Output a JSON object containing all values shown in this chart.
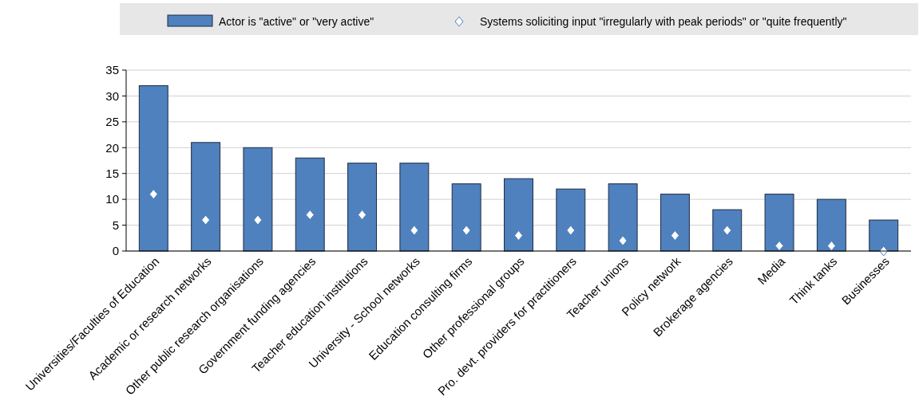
{
  "chart_data": {
    "type": "bar",
    "categories": [
      "Universities/Faculties of Education",
      "Academic or research networks",
      "Other public research organisations",
      "Government funding agencies",
      "Teacher education institutions",
      "University - School networks",
      "Education consulting firms",
      "Other professional groups",
      "Pro. devt. providers for practitioners",
      "Teacher unions",
      "Policy network",
      "Brokerage agencies",
      "Media",
      "Think tanks",
      "Businesses"
    ],
    "series": [
      {
        "name": "Actor is \"active\" or \"very active\"",
        "color": "#4e81bd",
        "values": [
          32,
          21,
          20,
          18,
          17,
          17,
          13,
          14,
          12,
          13,
          11,
          8,
          11,
          10,
          6
        ]
      },
      {
        "name": "Systems soliciting input \"irregularly with peak periods\" or \"quite frequently\"",
        "color": "#ffffff",
        "type": "scatter",
        "marker": "diamond",
        "values": [
          11,
          6,
          6,
          7,
          7,
          4,
          4,
          3,
          4,
          2,
          3,
          4,
          1,
          1,
          0
        ]
      }
    ],
    "ylim": [
      0,
      35
    ],
    "yticks": [
      0,
      5,
      10,
      15,
      20,
      25,
      30,
      35
    ],
    "grid": "y",
    "legend": "top"
  }
}
